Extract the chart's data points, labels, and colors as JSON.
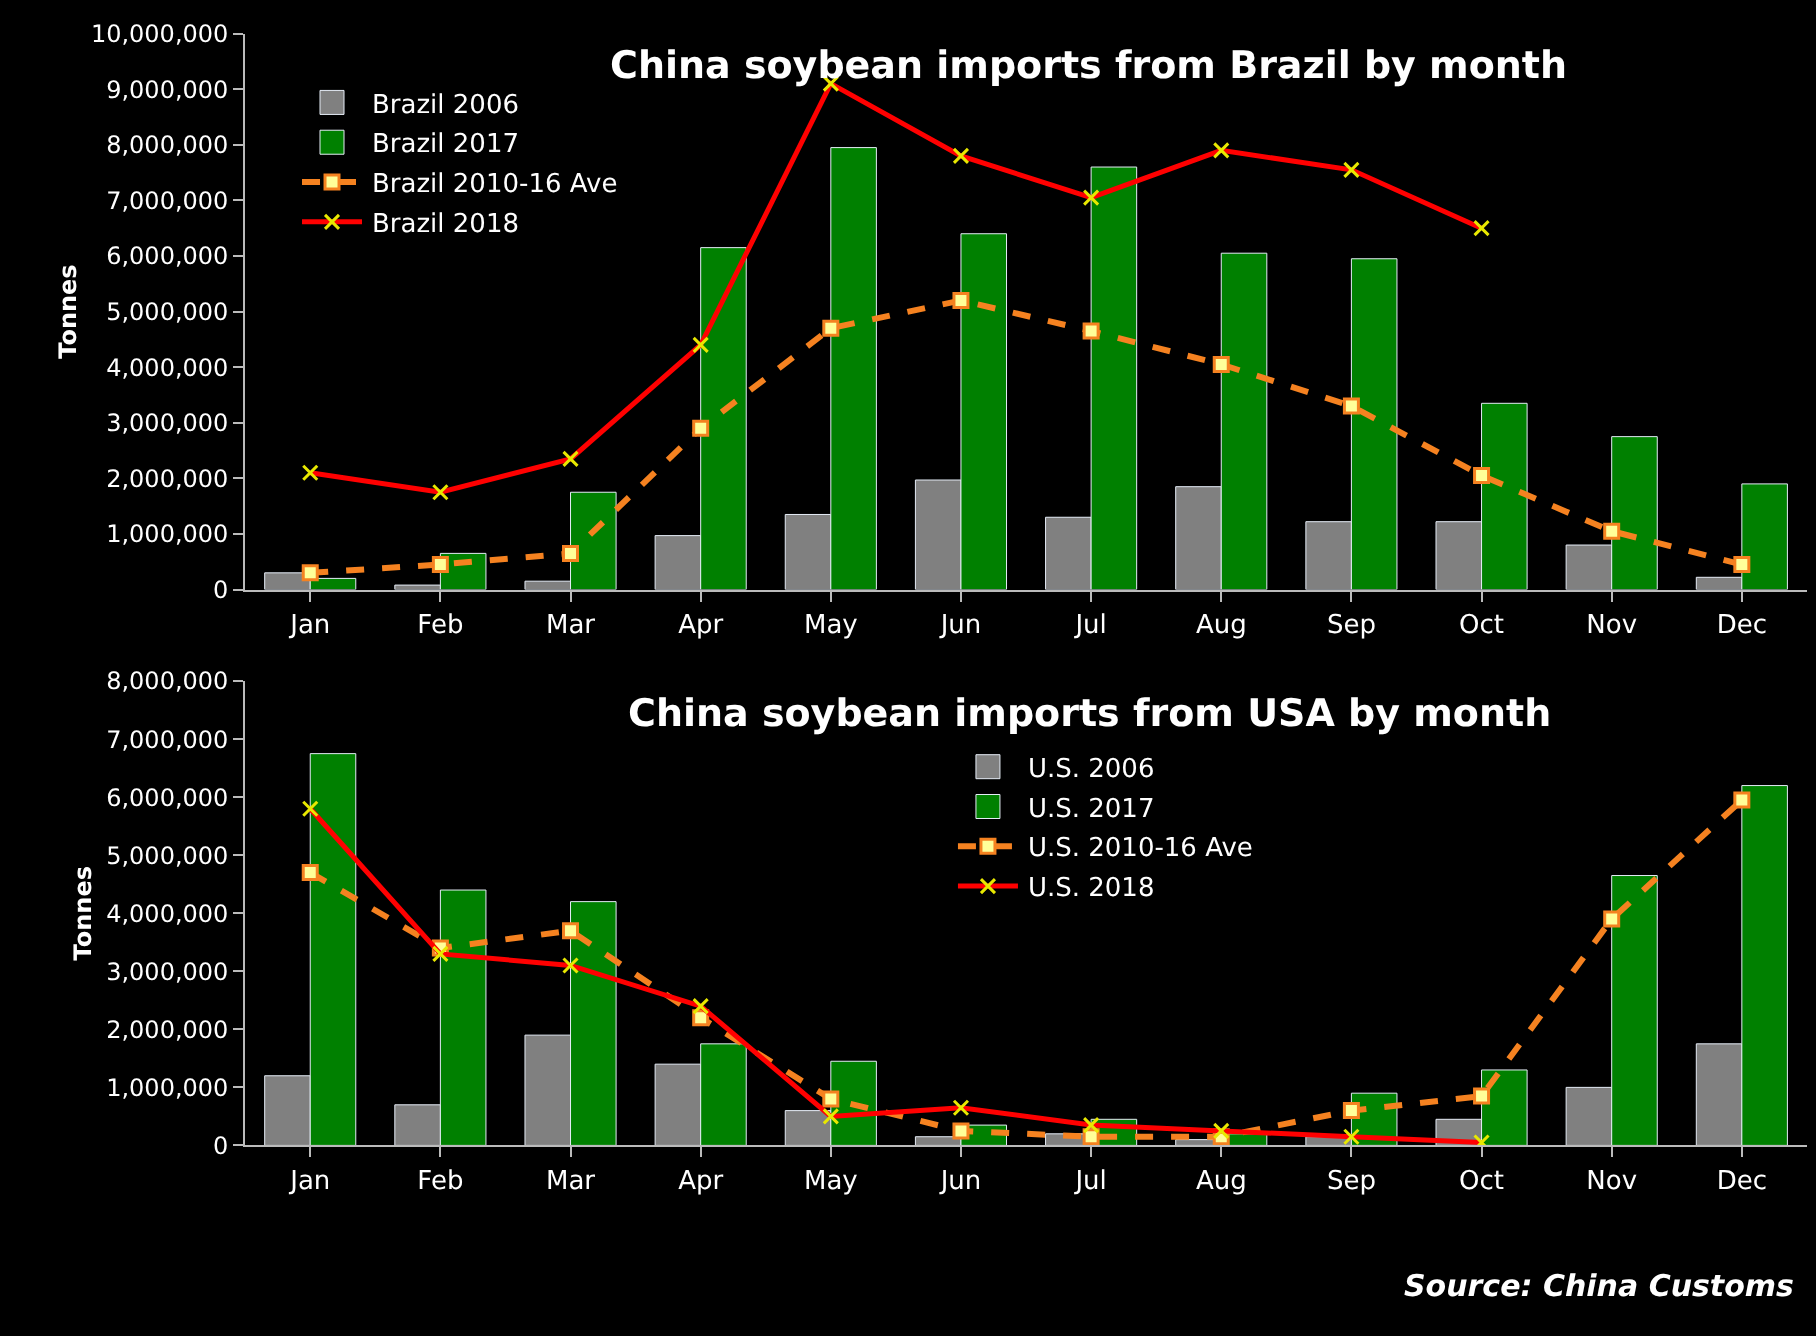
{
  "chart_data": [
    {
      "type": "bar",
      "title": "China soybean imports from Brazil by month",
      "ylabel": "Tonnes",
      "categories": [
        "Jan",
        "Feb",
        "Mar",
        "Apr",
        "May",
        "Jun",
        "Jul",
        "Aug",
        "Sep",
        "Oct",
        "Nov",
        "Dec"
      ],
      "series": [
        {
          "name": "Brazil 2006",
          "color": "#808080",
          "values": [
            300000,
            80000,
            150000,
            970000,
            1350000,
            1970000,
            1300000,
            1850000,
            1220000,
            1220000,
            800000,
            220000
          ]
        },
        {
          "name": "Brazil 2017",
          "color": "#008000",
          "values": [
            200000,
            650000,
            1750000,
            6150000,
            7950000,
            6400000,
            7600000,
            6050000,
            5950000,
            3350000,
            2750000,
            1900000
          ]
        },
        {
          "name": "Brazil 2010-16 Ave",
          "type": "line",
          "color": "#f58220",
          "marker": "square",
          "line_style": "dashed",
          "values": [
            300000,
            450000,
            650000,
            2900000,
            4700000,
            5200000,
            4650000,
            4050000,
            3300000,
            2050000,
            1050000,
            450000
          ]
        },
        {
          "name": "Brazil 2018",
          "type": "line",
          "color": "#ff0000",
          "marker": "cross",
          "line_style": "solid",
          "values": [
            2100000,
            1750000,
            2350000,
            4400000,
            9100000,
            7800000,
            7050000,
            7900000,
            7550000,
            6500000,
            null,
            null
          ]
        }
      ],
      "ylim": [
        0,
        10000000
      ],
      "yticks": [
        {
          "value": 0,
          "label": "0"
        },
        {
          "value": 1000000,
          "label": "1,000,000"
        },
        {
          "value": 2000000,
          "label": "2,000,000"
        },
        {
          "value": 3000000,
          "label": "3,000,000"
        },
        {
          "value": 4000000,
          "label": "4,000,000"
        },
        {
          "value": 5000000,
          "label": "5,000,000"
        },
        {
          "value": 6000000,
          "label": "6,000,000"
        },
        {
          "value": 7000000,
          "label": "7,000,000"
        },
        {
          "value": 8000000,
          "label": "8,000,000"
        },
        {
          "value": 9000000,
          "label": "9,000,000"
        },
        {
          "value": 10000000,
          "label": "10,000,000"
        }
      ],
      "grid": false,
      "legend": "top left"
    },
    {
      "type": "bar",
      "title": "China soybean imports from USA by month",
      "ylabel": "Tonnes",
      "categories": [
        "Jan",
        "Feb",
        "Mar",
        "Apr",
        "May",
        "Jun",
        "Jul",
        "Aug",
        "Sep",
        "Oct",
        "Nov",
        "Dec"
      ],
      "series": [
        {
          "name": "U.S. 2006",
          "color": "#808080",
          "values": [
            1200000,
            700000,
            1900000,
            1400000,
            600000,
            150000,
            200000,
            100000,
            150000,
            450000,
            1000000,
            1750000
          ]
        },
        {
          "name": "U.S. 2017",
          "color": "#008000",
          "values": [
            6750000,
            4400000,
            4200000,
            1750000,
            1450000,
            350000,
            450000,
            200000,
            900000,
            1300000,
            4650000,
            6200000
          ]
        },
        {
          "name": "U.S. 2010-16 Ave",
          "type": "line",
          "color": "#f58220",
          "marker": "square",
          "line_style": "dashed",
          "values": [
            4700000,
            3400000,
            3700000,
            2200000,
            800000,
            250000,
            150000,
            150000,
            600000,
            850000,
            3900000,
            5950000
          ]
        },
        {
          "name": "U.S. 2018",
          "type": "line",
          "color": "#ff0000",
          "marker": "cross",
          "line_style": "solid",
          "values": [
            5800000,
            3300000,
            3100000,
            2400000,
            500000,
            650000,
            350000,
            250000,
            150000,
            50000,
            null,
            null
          ]
        }
      ],
      "ylim": [
        0,
        8000000
      ],
      "yticks": [
        {
          "value": 0,
          "label": "0"
        },
        {
          "value": 1000000,
          "label": "1,000,000"
        },
        {
          "value": 2000000,
          "label": "2,000,000"
        },
        {
          "value": 3000000,
          "label": "3,000,000"
        },
        {
          "value": 4000000,
          "label": "4,000,000"
        },
        {
          "value": 5000000,
          "label": "5,000,000"
        },
        {
          "value": 6000000,
          "label": "6,000,000"
        },
        {
          "value": 7000000,
          "label": "7,000,000"
        },
        {
          "value": 8000000,
          "label": "8,000,000"
        }
      ],
      "grid": false,
      "legend": "top",
      "annotations": [
        "Source: China Customs"
      ]
    }
  ]
}
